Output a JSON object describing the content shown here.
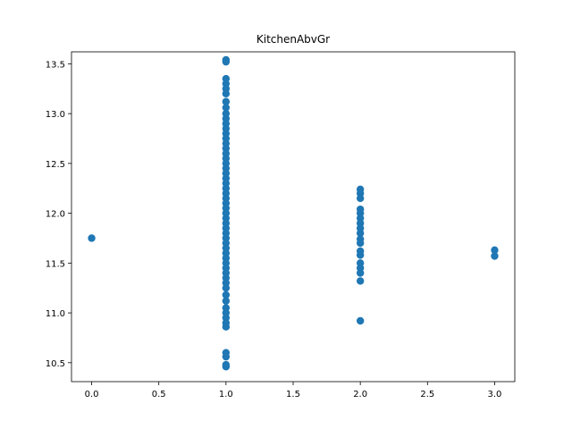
{
  "chart_data": {
    "type": "scatter",
    "title": "KitchenAbvGr",
    "xlabel": "",
    "ylabel": "",
    "xlim": [
      -0.15,
      3.15
    ],
    "ylim": [
      10.31,
      13.62
    ],
    "x_ticks": [
      0.0,
      0.5,
      1.0,
      1.5,
      2.0,
      2.5,
      3.0
    ],
    "x_tick_labels": [
      "0.0",
      "0.5",
      "1.0",
      "1.5",
      "2.0",
      "2.5",
      "3.0"
    ],
    "y_ticks": [
      10.5,
      11.0,
      11.5,
      12.0,
      12.5,
      13.0,
      13.5
    ],
    "y_tick_labels": [
      "10.5",
      "11.0",
      "11.5",
      "12.0",
      "12.5",
      "13.0",
      "13.5"
    ],
    "grid": false,
    "marker_color": "#1f77b4",
    "points": [
      {
        "x": 0,
        "y": 11.75
      },
      {
        "x": 1,
        "y": 13.54
      },
      {
        "x": 1,
        "y": 13.52
      },
      {
        "x": 1,
        "y": 13.35
      },
      {
        "x": 1,
        "y": 13.3
      },
      {
        "x": 1,
        "y": 13.25
      },
      {
        "x": 1,
        "y": 13.2
      },
      {
        "x": 1,
        "y": 13.12
      },
      {
        "x": 1,
        "y": 13.06
      },
      {
        "x": 1,
        "y": 13.0
      },
      {
        "x": 1,
        "y": 12.95
      },
      {
        "x": 1,
        "y": 12.9
      },
      {
        "x": 1,
        "y": 12.85
      },
      {
        "x": 1,
        "y": 12.8
      },
      {
        "x": 1,
        "y": 12.75
      },
      {
        "x": 1,
        "y": 12.7
      },
      {
        "x": 1,
        "y": 12.65
      },
      {
        "x": 1,
        "y": 12.6
      },
      {
        "x": 1,
        "y": 12.55
      },
      {
        "x": 1,
        "y": 12.5
      },
      {
        "x": 1,
        "y": 12.45
      },
      {
        "x": 1,
        "y": 12.4
      },
      {
        "x": 1,
        "y": 12.35
      },
      {
        "x": 1,
        "y": 12.3
      },
      {
        "x": 1,
        "y": 12.25
      },
      {
        "x": 1,
        "y": 12.2
      },
      {
        "x": 1,
        "y": 12.15
      },
      {
        "x": 1,
        "y": 12.1
      },
      {
        "x": 1,
        "y": 12.05
      },
      {
        "x": 1,
        "y": 12.0
      },
      {
        "x": 1,
        "y": 11.95
      },
      {
        "x": 1,
        "y": 11.9
      },
      {
        "x": 1,
        "y": 11.85
      },
      {
        "x": 1,
        "y": 11.8
      },
      {
        "x": 1,
        "y": 11.75
      },
      {
        "x": 1,
        "y": 11.7
      },
      {
        "x": 1,
        "y": 11.65
      },
      {
        "x": 1,
        "y": 11.6
      },
      {
        "x": 1,
        "y": 11.55
      },
      {
        "x": 1,
        "y": 11.5
      },
      {
        "x": 1,
        "y": 11.45
      },
      {
        "x": 1,
        "y": 11.4
      },
      {
        "x": 1,
        "y": 11.35
      },
      {
        "x": 1,
        "y": 11.3
      },
      {
        "x": 1,
        "y": 11.25
      },
      {
        "x": 1,
        "y": 11.18
      },
      {
        "x": 1,
        "y": 11.12
      },
      {
        "x": 1,
        "y": 11.05
      },
      {
        "x": 1,
        "y": 11.0
      },
      {
        "x": 1,
        "y": 10.95
      },
      {
        "x": 1,
        "y": 10.9
      },
      {
        "x": 1,
        "y": 10.86
      },
      {
        "x": 1,
        "y": 10.6
      },
      {
        "x": 1,
        "y": 10.56
      },
      {
        "x": 1,
        "y": 10.48
      },
      {
        "x": 1,
        "y": 10.46
      },
      {
        "x": 2,
        "y": 12.24
      },
      {
        "x": 2,
        "y": 12.2
      },
      {
        "x": 2,
        "y": 12.15
      },
      {
        "x": 2,
        "y": 12.04
      },
      {
        "x": 2,
        "y": 12.0
      },
      {
        "x": 2,
        "y": 11.95
      },
      {
        "x": 2,
        "y": 11.9
      },
      {
        "x": 2,
        "y": 11.85
      },
      {
        "x": 2,
        "y": 11.8
      },
      {
        "x": 2,
        "y": 11.74
      },
      {
        "x": 2,
        "y": 11.7
      },
      {
        "x": 2,
        "y": 11.62
      },
      {
        "x": 2,
        "y": 11.58
      },
      {
        "x": 2,
        "y": 11.5
      },
      {
        "x": 2,
        "y": 11.45
      },
      {
        "x": 2,
        "y": 11.4
      },
      {
        "x": 2,
        "y": 11.32
      },
      {
        "x": 2,
        "y": 10.92
      },
      {
        "x": 3,
        "y": 11.63
      },
      {
        "x": 3,
        "y": 11.57
      }
    ]
  }
}
